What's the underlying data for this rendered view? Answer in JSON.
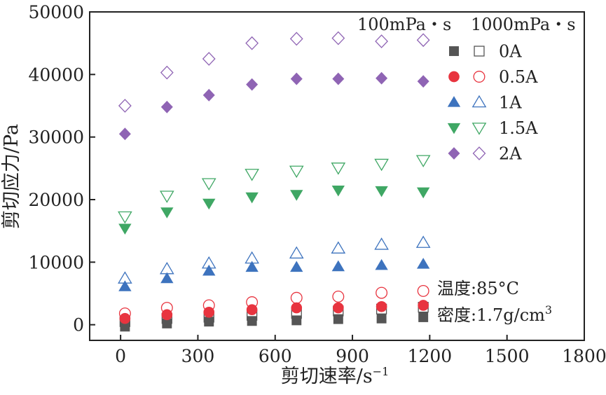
{
  "chart_data": {
    "type": "scatter",
    "xlabel": "剪切速率/s",
    "xlabel_sup": "−1",
    "ylabel": "剪切应力/Pa",
    "xlim": [
      -120,
      1800
    ],
    "ylim": [
      -2500,
      50000
    ],
    "xticks": [
      0,
      300,
      600,
      900,
      1200,
      1500,
      1800
    ],
    "yticks": [
      0,
      10000,
      20000,
      30000,
      40000,
      50000
    ],
    "grid": false,
    "legend_placement": "top-right",
    "legend_headers": [
      "100mPa・s",
      "1000mPa・s"
    ],
    "x": [
      17,
      180,
      343,
      510,
      683,
      845,
      1013,
      1175
    ],
    "groups": [
      {
        "name": "0A",
        "marker": "square",
        "color": "#555555",
        "filled_values": [
          -300,
          200,
          500,
          600,
          700,
          900,
          1000,
          1200
        ],
        "open_values": [
          500,
          1000,
          1200,
          1500,
          1800,
          2200,
          2500,
          2800
        ]
      },
      {
        "name": "0.5A",
        "marker": "circle",
        "color": "#e8343f",
        "filled_values": [
          1000,
          1600,
          2000,
          2400,
          2700,
          2700,
          2900,
          3100
        ],
        "open_values": [
          1800,
          2700,
          3100,
          3600,
          4300,
          4500,
          5100,
          5400
        ]
      },
      {
        "name": "1A",
        "marker": "triangle-up",
        "color": "#3d73be",
        "filled_values": [
          6100,
          7400,
          8600,
          9200,
          9200,
          9300,
          9500,
          9700
        ],
        "open_values": [
          7400,
          8900,
          9800,
          10600,
          11400,
          12200,
          12800,
          13100
        ]
      },
      {
        "name": "1.5A",
        "marker": "triangle-down",
        "color": "#3fa764",
        "filled_values": [
          15400,
          18000,
          19400,
          20400,
          20800,
          21500,
          21400,
          21200
        ],
        "open_values": [
          17300,
          20600,
          22600,
          24100,
          24600,
          25100,
          25700,
          26300
        ]
      },
      {
        "name": "2A",
        "marker": "diamond",
        "color": "#8f64b4",
        "filled_values": [
          30500,
          34800,
          36700,
          38400,
          39300,
          39300,
          39400,
          38900
        ],
        "open_values": [
          35000,
          40300,
          42500,
          45000,
          45700,
          45800,
          45300,
          45500
        ]
      }
    ],
    "annotations": [
      "温度:85°C",
      "密度:1.7g/cm",
      "3"
    ]
  }
}
